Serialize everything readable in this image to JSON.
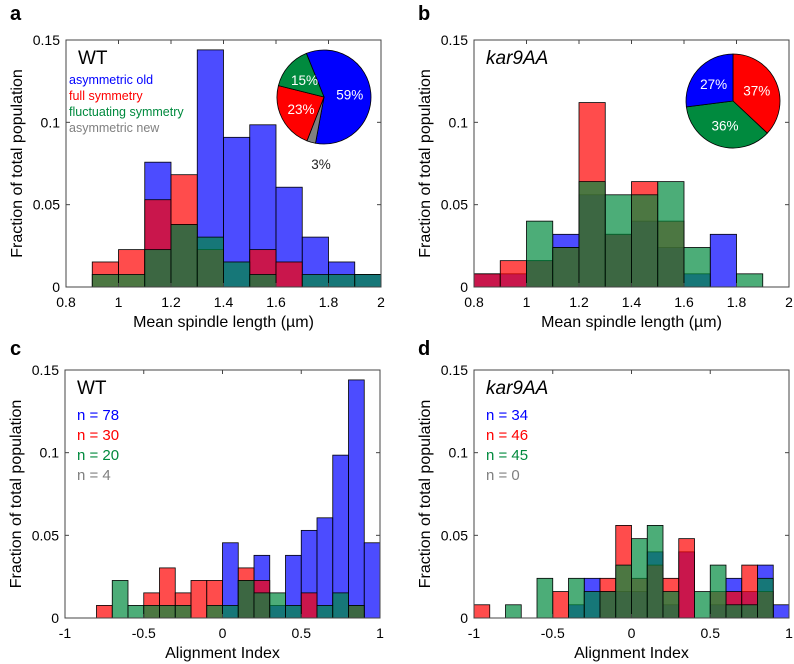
{
  "chart_data": [
    {
      "panel": "a",
      "type": "bar",
      "stacking": "overlay",
      "title": "WT",
      "xlabel": "Mean spindle length (µm)",
      "ylabel": "Fraction of total population",
      "xlim": [
        0.8,
        2
      ],
      "ylim": [
        0,
        0.15
      ],
      "bin_width": 0.1,
      "xticks": [
        "0.8",
        "1",
        "1.2",
        "1.4",
        "1.6",
        "1.8",
        "2"
      ],
      "yticks": [
        "0",
        "0.05",
        "0.1",
        "0.15"
      ],
      "legend_labels": [
        "asymmetric old",
        "full symmetry",
        "fluctuating symmetry",
        "asymmetric new"
      ],
      "bin_starts": [
        0.8,
        0.9,
        1.0,
        1.1,
        1.2,
        1.3,
        1.4,
        1.5,
        1.6,
        1.7,
        1.8,
        1.9
      ],
      "series": [
        {
          "name": "asymmetric old",
          "color": "#0000ff",
          "values": [
            0,
            0,
            0,
            0.0758,
            0.038,
            0.144,
            0.0909,
            0.0985,
            0.0606,
            0.0303,
            0.0152,
            0.0076
          ]
        },
        {
          "name": "full symmetry",
          "color": "#ff0000",
          "values": [
            0,
            0.0152,
            0.0227,
            0.053,
            0.0682,
            0.0227,
            0,
            0.0227,
            0.0152,
            0,
            0,
            0
          ]
        },
        {
          "name": "fluctuating symmetry",
          "color": "#008a3e",
          "values": [
            0,
            0.0076,
            0.0076,
            0.0227,
            0.0379,
            0.0303,
            0.0152,
            0.0076,
            0,
            0.0076,
            0.0076,
            0.0076
          ]
        }
      ],
      "pie": {
        "slices": [
          {
            "label": "59%",
            "value": 59,
            "color": "#0000ff"
          },
          {
            "label": "3%",
            "value": 3,
            "color": "#808080"
          },
          {
            "label": "23%",
            "value": 23,
            "color": "#ff0000"
          },
          {
            "label": "15%",
            "value": 15,
            "color": "#008a3e"
          }
        ]
      }
    },
    {
      "panel": "b",
      "type": "bar",
      "stacking": "overlay",
      "title": "kar9AA",
      "xlabel": "Mean spindle length (µm)",
      "ylabel": "Fraction of total population",
      "xlim": [
        0.8,
        2
      ],
      "ylim": [
        0,
        0.15
      ],
      "bin_width": 0.1,
      "xticks": [
        "0.8",
        "1",
        "1.2",
        "1.4",
        "1.6",
        "1.8",
        "2"
      ],
      "yticks": [
        "0",
        "0.05",
        "0.1",
        "0.15"
      ],
      "bin_starts": [
        0.8,
        0.9,
        1.0,
        1.1,
        1.2,
        1.3,
        1.4,
        1.5,
        1.6,
        1.7,
        1.8,
        1.9
      ],
      "series": [
        {
          "name": "asymmetric old",
          "color": "#0000ff",
          "values": [
            0.008,
            0.008,
            0.016,
            0.032,
            0.056,
            0.032,
            0.04,
            0.024,
            0.008,
            0.032,
            0,
            0
          ]
        },
        {
          "name": "full symmetry",
          "color": "#ff0000",
          "values": [
            0.008,
            0.016,
            0.016,
            0.024,
            0.112,
            0.032,
            0.064,
            0.04,
            0,
            0,
            0,
            0
          ]
        },
        {
          "name": "fluctuating symmetry",
          "color": "#008a3e",
          "values": [
            0,
            0,
            0.04,
            0.024,
            0.064,
            0.056,
            0.056,
            0.064,
            0.024,
            0,
            0.008,
            0
          ]
        }
      ],
      "pie": {
        "slices": [
          {
            "label": "37%",
            "value": 37,
            "color": "#ff0000"
          },
          {
            "label": "36%",
            "value": 36,
            "color": "#008a3e"
          },
          {
            "label": "27%",
            "value": 27,
            "color": "#0000ff"
          }
        ]
      }
    },
    {
      "panel": "c",
      "type": "bar",
      "stacking": "overlay",
      "title": "WT",
      "xlabel": "Alignment Index",
      "ylabel": "Fraction of total population",
      "xlim": [
        -1,
        1
      ],
      "ylim": [
        0,
        0.15
      ],
      "bin_width": 0.1,
      "xticks": [
        "-1",
        "-0.5",
        "0",
        "0.5",
        "1"
      ],
      "yticks": [
        "0",
        "0.05",
        "0.1",
        "0.15"
      ],
      "counts": [
        {
          "label": "n = 78",
          "color": "#0000ff"
        },
        {
          "label": "n = 30",
          "color": "#ff0000"
        },
        {
          "label": "n = 20",
          "color": "#008a3e"
        },
        {
          "label": "n = 4",
          "color": "#808080"
        }
      ],
      "bin_starts": [
        -1,
        -0.9,
        -0.8,
        -0.7,
        -0.6,
        -0.5,
        -0.4,
        -0.3,
        -0.2,
        -0.1,
        0,
        0.1,
        0.2,
        0.3,
        0.4,
        0.5,
        0.6,
        0.7,
        0.8,
        0.9
      ],
      "series": [
        {
          "name": "asymmetric old",
          "color": "#0000ff",
          "values": [
            0,
            0,
            0,
            0,
            0,
            0,
            0,
            0,
            0,
            0,
            0.0455,
            0.0227,
            0.0379,
            0.0076,
            0.0379,
            0.053,
            0.0606,
            0.0985,
            0.144,
            0.0455
          ]
        },
        {
          "name": "full symmetry",
          "color": "#ff0000",
          "values": [
            0,
            0,
            0.0076,
            0,
            0,
            0.0152,
            0.0303,
            0.0152,
            0.0227,
            0.0227,
            0,
            0.0303,
            0.0227,
            0,
            0,
            0.0152,
            0,
            0,
            0.0076,
            0
          ]
        },
        {
          "name": "fluctuating symmetry",
          "color": "#008a3e",
          "values": [
            0,
            0,
            0,
            0.0227,
            0.0076,
            0.0076,
            0.0076,
            0.0076,
            0,
            0.0076,
            0.0076,
            0.0227,
            0.0152,
            0.0152,
            0.0076,
            0,
            0.0076,
            0.0152,
            0.0076,
            0
          ]
        }
      ]
    },
    {
      "panel": "d",
      "type": "bar",
      "stacking": "overlay",
      "title": "kar9AA",
      "xlabel": "Alignment Index",
      "ylabel": "Fraction of total population",
      "xlim": [
        -1,
        1
      ],
      "ylim": [
        0,
        0.15
      ],
      "bin_width": 0.1,
      "xticks": [
        "-1",
        "-0.5",
        "0",
        "0.5",
        "1"
      ],
      "yticks": [
        "0",
        "0.05",
        "0.1",
        "0.15"
      ],
      "counts": [
        {
          "label": "n = 34",
          "color": "#0000ff"
        },
        {
          "label": "n = 46",
          "color": "#ff0000"
        },
        {
          "label": "n = 45",
          "color": "#008a3e"
        },
        {
          "label": "n = 0",
          "color": "#808080"
        }
      ],
      "bin_starts": [
        -1,
        -0.9,
        -0.8,
        -0.7,
        -0.6,
        -0.5,
        -0.4,
        -0.3,
        -0.2,
        -0.1,
        0,
        0.1,
        0.2,
        0.3,
        0.4,
        0.5,
        0.6,
        0.7,
        0.8,
        0.9
      ],
      "series": [
        {
          "name": "asymmetric old",
          "color": "#0000ff",
          "values": [
            0,
            0,
            0,
            0,
            0,
            0,
            0.008,
            0.024,
            0.016,
            0.016,
            0.016,
            0.04,
            0.008,
            0.04,
            0,
            0.008,
            0.024,
            0.016,
            0.032,
            0.008
          ]
        },
        {
          "name": "full symmetry",
          "color": "#ff0000",
          "values": [
            0.008,
            0,
            0,
            0,
            0,
            0.016,
            0,
            0,
            0.024,
            0.056,
            0.024,
            0.032,
            0.024,
            0.048,
            0,
            0.016,
            0.016,
            0.032,
            0.016,
            0
          ]
        },
        {
          "name": "fluctuating symmetry",
          "color": "#008a3e",
          "values": [
            0,
            0,
            0.008,
            0,
            0.024,
            0,
            0.024,
            0.016,
            0.016,
            0.032,
            0.048,
            0.056,
            0.016,
            0,
            0.016,
            0.032,
            0.008,
            0.008,
            0.024,
            0
          ]
        }
      ]
    }
  ]
}
